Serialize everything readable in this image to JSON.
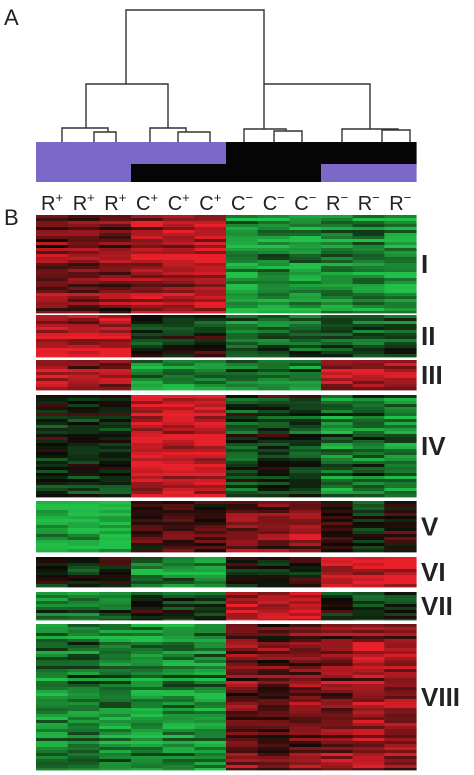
{
  "panels": {
    "a": "A",
    "b": "B"
  },
  "columns": [
    {
      "base": "R",
      "sign": "+"
    },
    {
      "base": "R",
      "sign": "+"
    },
    {
      "base": "R",
      "sign": "+"
    },
    {
      "base": "C",
      "sign": "+"
    },
    {
      "base": "C",
      "sign": "+"
    },
    {
      "base": "C",
      "sign": "+"
    },
    {
      "base": "C",
      "sign": "−"
    },
    {
      "base": "C",
      "sign": "−"
    },
    {
      "base": "C",
      "sign": "−"
    },
    {
      "base": "R",
      "sign": "−"
    },
    {
      "base": "R",
      "sign": "−"
    },
    {
      "base": "R",
      "sign": "−"
    }
  ],
  "annotation_colors": {
    "purple": "#7b68c8",
    "black": "#050505"
  },
  "annotation_rows": [
    [
      "purple",
      "purple",
      "purple",
      "purple",
      "purple",
      "purple",
      "black",
      "black",
      "black",
      "black",
      "black",
      "black"
    ],
    [
      "purple",
      "purple",
      "purple",
      "black",
      "black",
      "black",
      "black",
      "black",
      "black",
      "purple",
      "purple",
      "purple"
    ]
  ],
  "heatmap_colors": {
    "up": "#e8202a",
    "neutral": "#0c0a06",
    "down": "#22c048"
  },
  "clusters": [
    {
      "label": "I",
      "levels": [
        0.45,
        0.5,
        0.5,
        0.7,
        0.75,
        0.8,
        -0.8,
        -0.75,
        -0.8,
        -0.7,
        -0.65,
        -0.75
      ]
    },
    {
      "label": "II",
      "levels": [
        0.85,
        0.8,
        0.85,
        -0.1,
        -0.15,
        -0.1,
        -0.45,
        -0.4,
        -0.45,
        -0.35,
        -0.3,
        -0.35
      ]
    },
    {
      "label": "III",
      "levels": [
        0.75,
        0.6,
        0.65,
        -0.65,
        -0.75,
        -0.7,
        -0.55,
        -0.6,
        -0.55,
        0.8,
        0.75,
        0.7
      ]
    },
    {
      "label": "IV",
      "levels": [
        -0.1,
        -0.15,
        -0.1,
        0.95,
        0.95,
        0.95,
        -0.25,
        -0.1,
        -0.25,
        -0.55,
        -0.45,
        -0.55
      ]
    },
    {
      "label": "V",
      "levels": [
        -0.85,
        -0.8,
        -0.85,
        0.3,
        0.4,
        0.35,
        0.65,
        0.6,
        0.7,
        0.2,
        -0.1,
        0.2
      ]
    },
    {
      "label": "VI",
      "levels": [
        -0.1,
        -0.2,
        0.0,
        -0.65,
        -0.7,
        -0.75,
        0.0,
        -0.2,
        -0.05,
        0.85,
        0.8,
        0.85
      ]
    },
    {
      "label": "VII",
      "levels": [
        -0.55,
        -0.5,
        -0.5,
        -0.15,
        -0.2,
        -0.25,
        0.85,
        0.8,
        0.9,
        -0.1,
        -0.2,
        -0.1
      ]
    },
    {
      "label": "VIII",
      "levels": [
        -0.65,
        -0.6,
        -0.65,
        -0.75,
        -0.7,
        -0.7,
        0.5,
        0.3,
        0.45,
        0.55,
        0.7,
        0.6
      ]
    }
  ]
}
